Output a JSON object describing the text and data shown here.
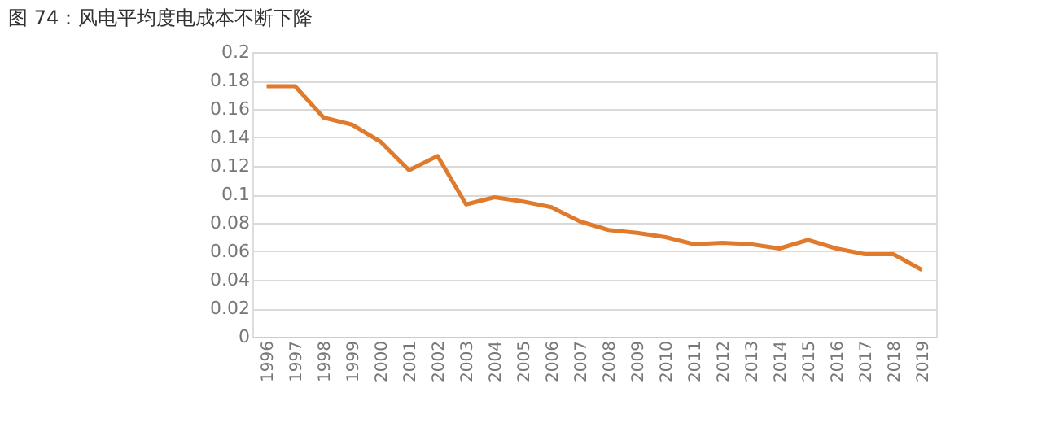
{
  "chart_data": {
    "type": "line",
    "title": "图 74：风电平均度电成本不断下降",
    "categories": [
      "1996",
      "1997",
      "1998",
      "1999",
      "2000",
      "2001",
      "2002",
      "2003",
      "2004",
      "2005",
      "2006",
      "2007",
      "2008",
      "2009",
      "2010",
      "2011",
      "2012",
      "2013",
      "2014",
      "2015",
      "2016",
      "2017",
      "2018",
      "2019"
    ],
    "series": [
      {
        "color": "#e07b2e",
        "values": [
          0.176,
          0.176,
          0.154,
          0.149,
          0.137,
          0.117,
          0.127,
          0.093,
          0.098,
          0.095,
          0.091,
          0.081,
          0.075,
          0.073,
          0.07,
          0.065,
          0.066,
          0.065,
          0.062,
          0.068,
          0.062,
          0.058,
          0.058,
          0.047
        ]
      }
    ],
    "ylim": [
      0,
      0.2
    ],
    "yticks": [
      0,
      0.02,
      0.04,
      0.06,
      0.08,
      0.1,
      0.12,
      0.14,
      0.16,
      0.18,
      0.2
    ],
    "grid": "y",
    "legend": false,
    "marker": "none",
    "line_style": "solid"
  }
}
